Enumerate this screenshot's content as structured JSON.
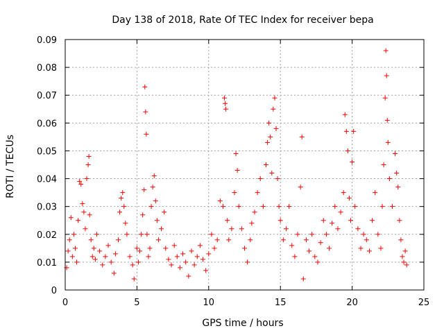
{
  "chart_data": {
    "type": "scatter",
    "title": "Day 138 of 2018, Rate Of TEC Index for receiver bepa",
    "xlabel": "GPS time / hours",
    "ylabel": "ROTI / TECUs",
    "xlim": [
      0,
      25
    ],
    "ylim": [
      0,
      0.09
    ],
    "xticks": [
      0,
      5,
      10,
      15,
      20,
      25
    ],
    "xtick_labels": [
      "0",
      "5",
      "10",
      "15",
      "20",
      "25"
    ],
    "yticks": [
      0,
      0.01,
      0.02,
      0.03,
      0.04,
      0.05,
      0.06,
      0.07,
      0.08,
      0.09
    ],
    "ytick_labels": [
      "0",
      "0.01",
      "0.02",
      "0.03",
      "0.04",
      "0.05",
      "0.06",
      "0.07",
      "0.08",
      "0.09"
    ],
    "grid": true,
    "marker": "+",
    "color": "#ff0000",
    "series": [
      {
        "name": "ROTI",
        "points": [
          [
            0.1,
            0.008
          ],
          [
            0.2,
            0.014
          ],
          [
            0.3,
            0.018
          ],
          [
            0.4,
            0.026
          ],
          [
            0.5,
            0.012
          ],
          [
            0.6,
            0.02
          ],
          [
            0.7,
            0.015
          ],
          [
            0.8,
            0.01
          ],
          [
            0.9,
            0.025
          ],
          [
            1.0,
            0.039
          ],
          [
            1.1,
            0.038
          ],
          [
            1.2,
            0.031
          ],
          [
            1.3,
            0.028
          ],
          [
            1.4,
            0.022
          ],
          [
            1.5,
            0.04
          ],
          [
            1.6,
            0.045
          ],
          [
            1.65,
            0.048
          ],
          [
            1.7,
            0.027
          ],
          [
            1.8,
            0.018
          ],
          [
            1.9,
            0.012
          ],
          [
            2.0,
            0.015
          ],
          [
            2.1,
            0.011
          ],
          [
            2.2,
            0.02
          ],
          [
            2.4,
            0.014
          ],
          [
            2.6,
            0.009
          ],
          [
            2.8,
            0.012
          ],
          [
            3.0,
            0.016
          ],
          [
            3.2,
            0.01
          ],
          [
            3.4,
            0.006
          ],
          [
            3.5,
            0.013
          ],
          [
            3.7,
            0.018
          ],
          [
            3.8,
            0.028
          ],
          [
            3.9,
            0.033
          ],
          [
            4.0,
            0.035
          ],
          [
            4.1,
            0.03
          ],
          [
            4.2,
            0.024
          ],
          [
            4.3,
            0.02
          ],
          [
            4.5,
            0.012
          ],
          [
            4.7,
            0.009
          ],
          [
            4.8,
            0.004
          ],
          [
            5.0,
            0.015
          ],
          [
            5.1,
            0.01
          ],
          [
            5.2,
            0.014
          ],
          [
            5.3,
            0.02
          ],
          [
            5.4,
            0.027
          ],
          [
            5.5,
            0.036
          ],
          [
            5.55,
            0.073
          ],
          [
            5.6,
            0.064
          ],
          [
            5.65,
            0.056
          ],
          [
            5.7,
            0.02
          ],
          [
            5.8,
            0.012
          ],
          [
            5.9,
            0.015
          ],
          [
            6.0,
            0.03
          ],
          [
            6.1,
            0.037
          ],
          [
            6.2,
            0.041
          ],
          [
            6.3,
            0.032
          ],
          [
            6.4,
            0.025
          ],
          [
            6.5,
            0.018
          ],
          [
            6.7,
            0.022
          ],
          [
            6.9,
            0.028
          ],
          [
            7.0,
            0.015
          ],
          [
            7.2,
            0.011
          ],
          [
            7.4,
            0.009
          ],
          [
            7.6,
            0.016
          ],
          [
            7.8,
            0.012
          ],
          [
            8.0,
            0.008
          ],
          [
            8.2,
            0.013
          ],
          [
            8.4,
            0.01
          ],
          [
            8.6,
            0.005
          ],
          [
            8.8,
            0.014
          ],
          [
            9.0,
            0.009
          ],
          [
            9.2,
            0.012
          ],
          [
            9.4,
            0.016
          ],
          [
            9.6,
            0.011
          ],
          [
            9.8,
            0.007
          ],
          [
            10.0,
            0.013
          ],
          [
            10.2,
            0.02
          ],
          [
            10.4,
            0.015
          ],
          [
            10.6,
            0.018
          ],
          [
            10.8,
            0.032
          ],
          [
            11.0,
            0.03
          ],
          [
            11.1,
            0.069
          ],
          [
            11.15,
            0.067
          ],
          [
            11.2,
            0.065
          ],
          [
            11.3,
            0.025
          ],
          [
            11.4,
            0.018
          ],
          [
            11.6,
            0.022
          ],
          [
            11.8,
            0.035
          ],
          [
            11.9,
            0.049
          ],
          [
            12.0,
            0.043
          ],
          [
            12.1,
            0.03
          ],
          [
            12.3,
            0.022
          ],
          [
            12.5,
            0.015
          ],
          [
            12.7,
            0.01
          ],
          [
            12.9,
            0.018
          ],
          [
            13.0,
            0.024
          ],
          [
            13.2,
            0.028
          ],
          [
            13.4,
            0.035
          ],
          [
            13.6,
            0.04
          ],
          [
            13.8,
            0.03
          ],
          [
            14.0,
            0.045
          ],
          [
            14.1,
            0.053
          ],
          [
            14.2,
            0.06
          ],
          [
            14.3,
            0.055
          ],
          [
            14.4,
            0.042
          ],
          [
            14.5,
            0.065
          ],
          [
            14.6,
            0.069
          ],
          [
            14.7,
            0.058
          ],
          [
            14.8,
            0.04
          ],
          [
            14.9,
            0.03
          ],
          [
            15.0,
            0.025
          ],
          [
            15.2,
            0.018
          ],
          [
            15.4,
            0.022
          ],
          [
            15.6,
            0.03
          ],
          [
            15.8,
            0.016
          ],
          [
            16.0,
            0.012
          ],
          [
            16.2,
            0.02
          ],
          [
            16.4,
            0.037
          ],
          [
            16.5,
            0.055
          ],
          [
            16.6,
            0.004
          ],
          [
            16.8,
            0.018
          ],
          [
            17.0,
            0.014
          ],
          [
            17.2,
            0.02
          ],
          [
            17.4,
            0.012
          ],
          [
            17.6,
            0.01
          ],
          [
            17.8,
            0.017
          ],
          [
            18.0,
            0.025
          ],
          [
            18.2,
            0.02
          ],
          [
            18.4,
            0.015
          ],
          [
            18.6,
            0.024
          ],
          [
            18.8,
            0.03
          ],
          [
            19.0,
            0.022
          ],
          [
            19.2,
            0.028
          ],
          [
            19.4,
            0.035
          ],
          [
            19.5,
            0.063
          ],
          [
            19.6,
            0.057
          ],
          [
            19.7,
            0.05
          ],
          [
            19.8,
            0.033
          ],
          [
            19.9,
            0.025
          ],
          [
            20.0,
            0.046
          ],
          [
            20.1,
            0.057
          ],
          [
            20.2,
            0.03
          ],
          [
            20.4,
            0.022
          ],
          [
            20.6,
            0.015
          ],
          [
            20.8,
            0.02
          ],
          [
            21.0,
            0.018
          ],
          [
            21.2,
            0.014
          ],
          [
            21.4,
            0.025
          ],
          [
            21.6,
            0.035
          ],
          [
            21.8,
            0.02
          ],
          [
            22.0,
            0.015
          ],
          [
            22.1,
            0.03
          ],
          [
            22.2,
            0.045
          ],
          [
            22.3,
            0.069
          ],
          [
            22.35,
            0.086
          ],
          [
            22.4,
            0.077
          ],
          [
            22.45,
            0.061
          ],
          [
            22.5,
            0.053
          ],
          [
            22.6,
            0.04
          ],
          [
            22.8,
            0.03
          ],
          [
            23.0,
            0.049
          ],
          [
            23.1,
            0.042
          ],
          [
            23.2,
            0.037
          ],
          [
            23.3,
            0.025
          ],
          [
            23.4,
            0.018
          ],
          [
            23.5,
            0.012
          ],
          [
            23.6,
            0.01
          ],
          [
            23.7,
            0.014
          ],
          [
            23.8,
            0.009
          ]
        ]
      }
    ]
  }
}
